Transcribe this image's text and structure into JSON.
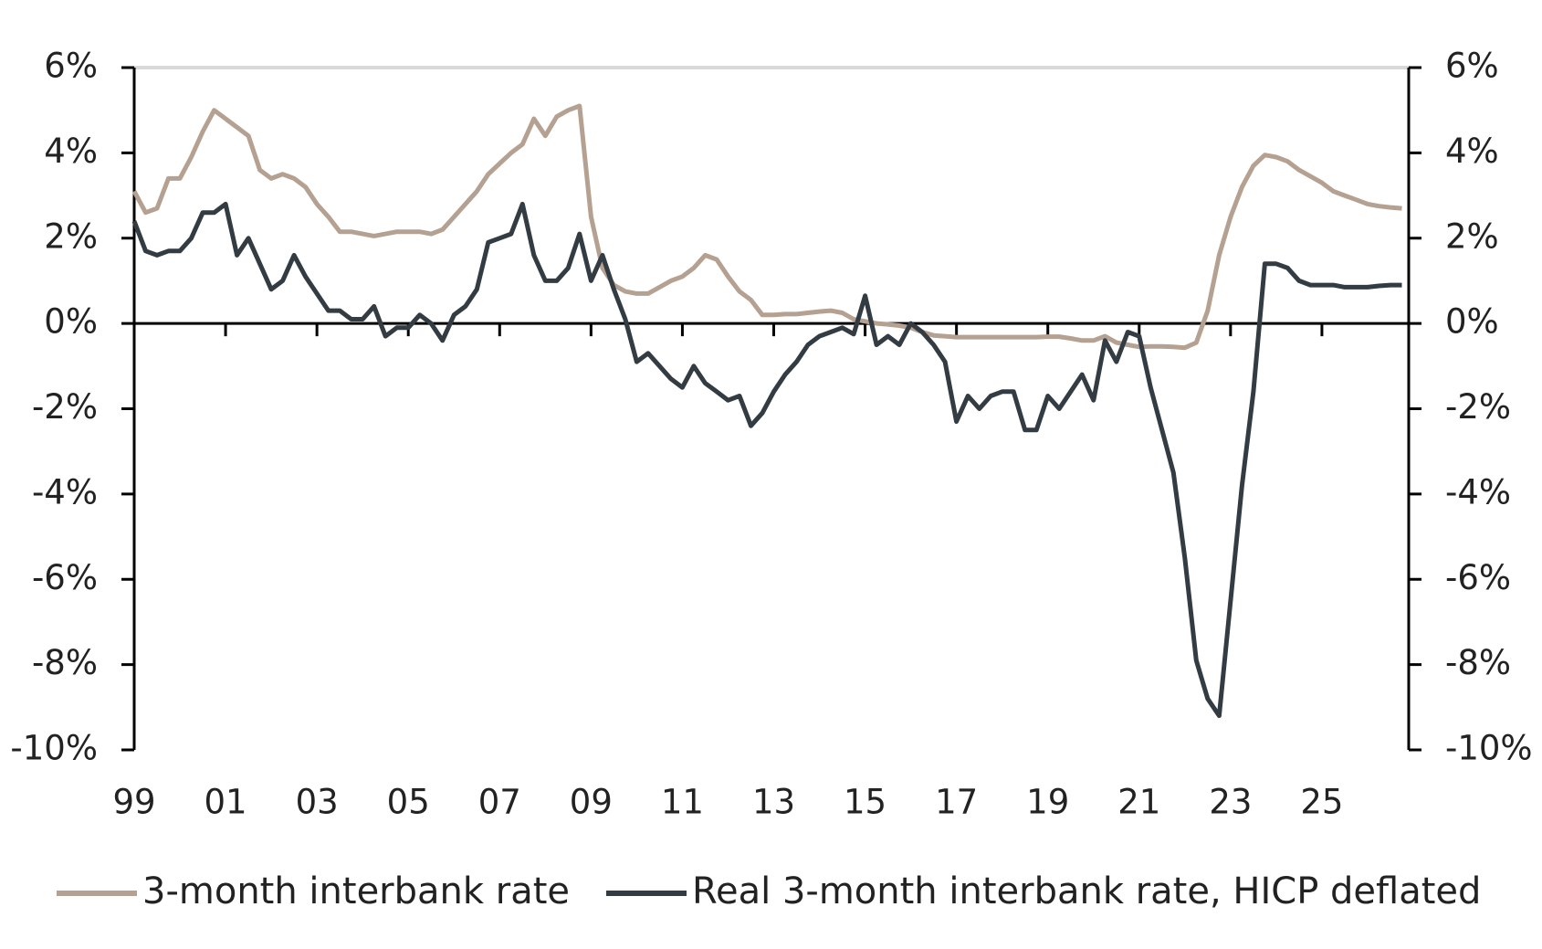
{
  "chart_data": {
    "type": "line",
    "x": [
      1999,
      1999.25,
      1999.5,
      1999.75,
      2000,
      2000.25,
      2000.5,
      2000.75,
      2001,
      2001.25,
      2001.5,
      2001.75,
      2002,
      2002.25,
      2002.5,
      2002.75,
      2003,
      2003.25,
      2003.5,
      2003.75,
      2004,
      2004.25,
      2004.5,
      2004.75,
      2005,
      2005.25,
      2005.5,
      2005.75,
      2006,
      2006.25,
      2006.5,
      2006.75,
      2007,
      2007.25,
      2007.5,
      2007.75,
      2008,
      2008.25,
      2008.5,
      2008.75,
      2009,
      2009.25,
      2009.5,
      2009.75,
      2010,
      2010.25,
      2010.5,
      2010.75,
      2011,
      2011.25,
      2011.5,
      2011.75,
      2012,
      2012.25,
      2012.5,
      2012.75,
      2013,
      2013.25,
      2013.5,
      2013.75,
      2014,
      2014.25,
      2014.5,
      2014.75,
      2015,
      2015.25,
      2015.5,
      2015.75,
      2016,
      2016.25,
      2016.5,
      2016.75,
      2017,
      2017.25,
      2017.5,
      2017.75,
      2018,
      2018.25,
      2018.5,
      2018.75,
      2019,
      2019.25,
      2019.5,
      2019.75,
      2020,
      2020.25,
      2020.5,
      2020.75,
      2021,
      2021.25,
      2021.5,
      2021.75,
      2022,
      2022.25,
      2022.5,
      2022.75,
      2023,
      2023.25,
      2023.5,
      2023.75,
      2024,
      2024.25,
      2024.5,
      2024.75,
      2025,
      2025.25,
      2025.5,
      2025.75,
      2026,
      2026.25,
      2026.5,
      2026.75
    ],
    "series": [
      {
        "name": "3-month interbank rate",
        "color": "#b5a191",
        "values": [
          3.1,
          2.6,
          2.7,
          3.4,
          3.4,
          3.9,
          4.5,
          5.0,
          4.8,
          4.6,
          4.4,
          3.6,
          3.4,
          3.5,
          3.4,
          3.2,
          2.8,
          2.5,
          2.15,
          2.15,
          2.1,
          2.05,
          2.1,
          2.15,
          2.15,
          2.15,
          2.1,
          2.2,
          2.5,
          2.8,
          3.1,
          3.5,
          3.75,
          4.0,
          4.2,
          4.8,
          4.4,
          4.85,
          5.0,
          5.1,
          2.5,
          1.3,
          0.9,
          0.75,
          0.7,
          0.7,
          0.85,
          1.0,
          1.1,
          1.3,
          1.6,
          1.5,
          1.1,
          0.75,
          0.55,
          0.2,
          0.2,
          0.22,
          0.22,
          0.25,
          0.28,
          0.3,
          0.25,
          0.1,
          0.05,
          0.0,
          -0.02,
          -0.05,
          -0.1,
          -0.2,
          -0.28,
          -0.3,
          -0.32,
          -0.32,
          -0.32,
          -0.32,
          -0.32,
          -0.32,
          -0.32,
          -0.32,
          -0.31,
          -0.31,
          -0.35,
          -0.4,
          -0.4,
          -0.3,
          -0.45,
          -0.5,
          -0.55,
          -0.54,
          -0.54,
          -0.55,
          -0.57,
          -0.45,
          0.3,
          1.6,
          2.5,
          3.2,
          3.7,
          3.95,
          3.9,
          3.8,
          3.6,
          3.45,
          3.3,
          3.1,
          3.0,
          2.9,
          2.8,
          2.75,
          2.72,
          2.7
        ]
      },
      {
        "name": "Real 3-month interbank rate, HICP deflated",
        "color": "#333b43",
        "values": [
          2.4,
          1.7,
          1.6,
          1.7,
          1.7,
          2.0,
          2.6,
          2.6,
          2.8,
          1.6,
          2.0,
          1.4,
          0.8,
          1.0,
          1.6,
          1.1,
          0.7,
          0.3,
          0.3,
          0.1,
          0.1,
          0.4,
          -0.3,
          -0.1,
          -0.1,
          0.2,
          0.0,
          -0.4,
          0.2,
          0.4,
          0.8,
          1.9,
          2.0,
          2.1,
          2.8,
          1.6,
          1.0,
          1.0,
          1.3,
          2.1,
          1.0,
          1.6,
          0.8,
          0.1,
          -0.9,
          -0.7,
          -1.0,
          -1.3,
          -1.5,
          -1.0,
          -1.4,
          -1.6,
          -1.8,
          -1.7,
          -2.4,
          -2.1,
          -1.6,
          -1.2,
          -0.9,
          -0.5,
          -0.3,
          -0.2,
          -0.1,
          -0.25,
          0.65,
          -0.5,
          -0.3,
          -0.5,
          0.0,
          -0.2,
          -0.5,
          -0.9,
          -2.3,
          -1.7,
          -2.0,
          -1.7,
          -1.6,
          -1.6,
          -2.5,
          -2.5,
          -1.7,
          -2.0,
          -1.6,
          -1.2,
          -1.8,
          -0.4,
          -0.9,
          -0.2,
          -0.3,
          -1.5,
          -2.5,
          -3.5,
          -5.5,
          -7.9,
          -8.8,
          -9.2,
          -6.5,
          -3.8,
          -1.6,
          1.4,
          1.4,
          1.3,
          1.0,
          0.9,
          0.9,
          0.9,
          0.85,
          0.85,
          0.85,
          0.88,
          0.9,
          0.9
        ]
      }
    ],
    "xlim": [
      1999,
      2026.9
    ],
    "xticks": [
      {
        "value": 1999,
        "label": "99"
      },
      {
        "value": 2001,
        "label": "01"
      },
      {
        "value": 2003,
        "label": "03"
      },
      {
        "value": 2005,
        "label": "05"
      },
      {
        "value": 2007,
        "label": "07"
      },
      {
        "value": 2009,
        "label": "09"
      },
      {
        "value": 2011,
        "label": "11"
      },
      {
        "value": 2013,
        "label": "13"
      },
      {
        "value": 2015,
        "label": "15"
      },
      {
        "value": 2017,
        "label": "17"
      },
      {
        "value": 2019,
        "label": "19"
      },
      {
        "value": 2021,
        "label": "21"
      },
      {
        "value": 2023,
        "label": "23"
      },
      {
        "value": 2025,
        "label": "25"
      }
    ],
    "ylim": [
      -10,
      6
    ],
    "yticks": [
      {
        "value": 6,
        "label": "6%"
      },
      {
        "value": 4,
        "label": "4%"
      },
      {
        "value": 2,
        "label": "2%"
      },
      {
        "value": 0,
        "label": "0%"
      },
      {
        "value": -2,
        "label": "-2%"
      },
      {
        "value": -4,
        "label": "-4%"
      },
      {
        "value": -6,
        "label": "-6%"
      },
      {
        "value": -8,
        "label": "-8%"
      },
      {
        "value": -10,
        "label": "-10%"
      }
    ],
    "y2lim": [
      -10,
      6
    ],
    "y2ticks": [
      {
        "value": 6,
        "label": "6%"
      },
      {
        "value": 4,
        "label": "4%"
      },
      {
        "value": 2,
        "label": "2%"
      },
      {
        "value": 0,
        "label": "0%"
      },
      {
        "value": -2,
        "label": "-2%"
      },
      {
        "value": -4,
        "label": "-4%"
      },
      {
        "value": -6,
        "label": "-6%"
      },
      {
        "value": -8,
        "label": "-8%"
      },
      {
        "value": -10,
        "label": "-10%"
      }
    ],
    "legend": "bottom"
  }
}
